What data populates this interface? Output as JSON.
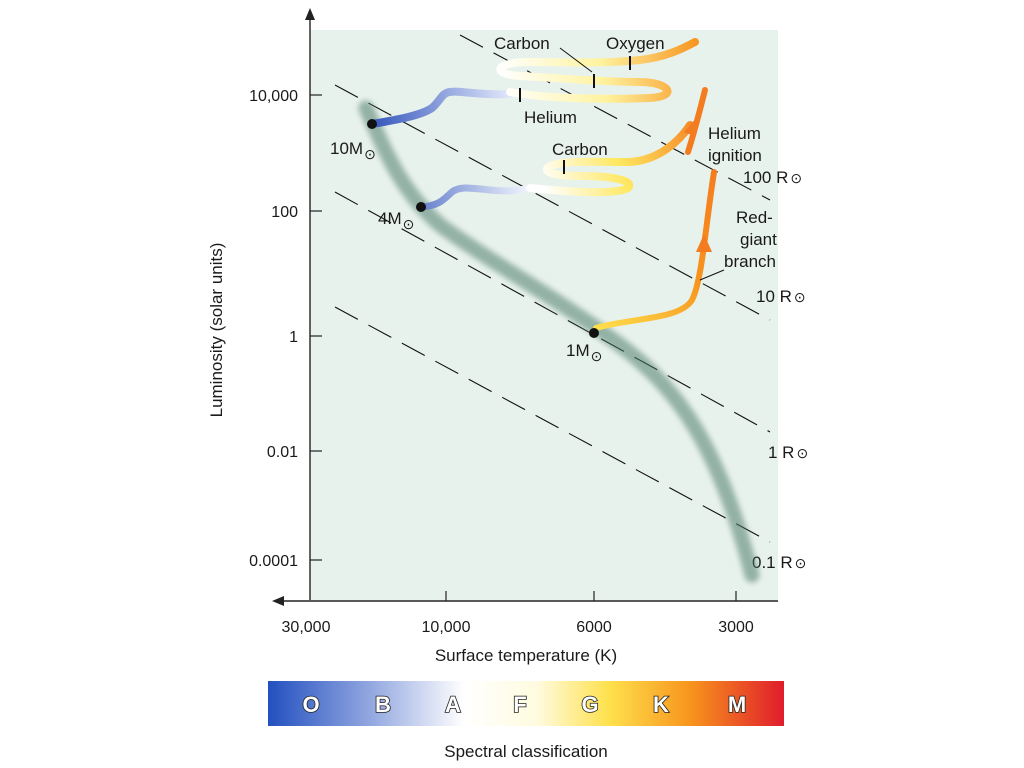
{
  "axes": {
    "ylabel": "Luminosity (solar units)",
    "xlabel": "Surface temperature (K)",
    "y_ticks": [
      "10,000",
      "100",
      "1",
      "0.01",
      "0.0001"
    ],
    "x_ticks": [
      "30,000",
      "10,000",
      "6000",
      "3000"
    ]
  },
  "radius_lines": [
    "100 R",
    "10 R",
    "1 R",
    "0.1 R"
  ],
  "radius_symbol": "⊙",
  "stars": [
    {
      "mass": "10M",
      "symbol": "⊙"
    },
    {
      "mass": "4M",
      "symbol": "⊙"
    },
    {
      "mass": "1M",
      "symbol": "⊙"
    }
  ],
  "annotations": {
    "carbon_top": "Carbon",
    "oxygen": "Oxygen",
    "helium": "Helium",
    "carbon_mid": "Carbon",
    "helium_ignition_1": "Helium",
    "helium_ignition_2": "ignition",
    "red_giant_1": "Red-",
    "red_giant_2": "giant",
    "red_giant_3": "branch"
  },
  "spectral": {
    "classes": [
      "O",
      "B",
      "A",
      "F",
      "G",
      "K",
      "M"
    ],
    "title": "Spectral classification",
    "colors": [
      "#2350c0",
      "#8aa0dc",
      "#ffffff",
      "#ffffff",
      "#ffe050",
      "#f7941d",
      "#e01c2c"
    ]
  },
  "colors": {
    "plot_bg": "#e8f2ec",
    "main_sequence": "#4d7d6a",
    "track_orange": "#f47c20",
    "track_blue": "#5a74c8"
  }
}
